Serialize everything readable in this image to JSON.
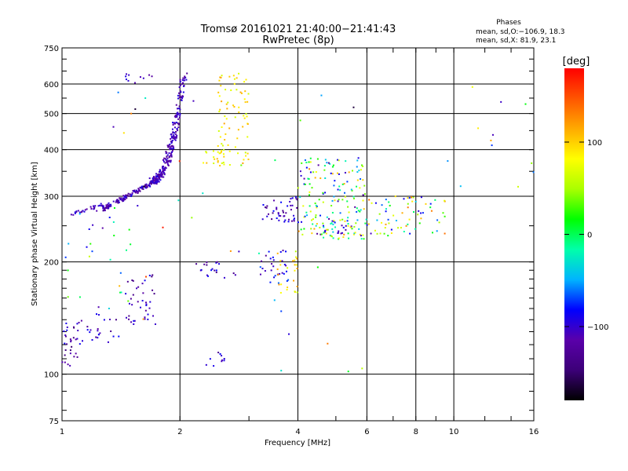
{
  "chart_data": {
    "type": "scatter",
    "title": "Tromsø 20161021 21:40:00−21:41:43",
    "subtitle": "RwPretec (8p)",
    "info_block": {
      "heading": "Phases",
      "line1": "mean, sd,O:−106.9, 18.3",
      "line2": "mean, sd,X:  81.9, 23.1"
    },
    "xlabel": "Frequency [MHz]",
    "ylabel": "Stationary phase Virtual Height [km]",
    "x_scale": "log",
    "y_scale": "log",
    "xlim": [
      1,
      16
    ],
    "ylim": [
      75,
      750
    ],
    "x_ticks": [
      1,
      2,
      4,
      6,
      8,
      10,
      16
    ],
    "x_tick_labels": [
      "1",
      "2",
      "4",
      "6",
      "8",
      "10",
      "16"
    ],
    "x_grid": [
      2,
      4,
      6,
      8,
      10
    ],
    "y_ticks": [
      75,
      100,
      200,
      300,
      400,
      500,
      600,
      750
    ],
    "y_tick_labels": [
      "75",
      "100",
      "200",
      "300",
      "400",
      "500",
      "600",
      "750"
    ],
    "y_grid": [
      100,
      200,
      300,
      400,
      500,
      600
    ],
    "grid": true,
    "colorbar": {
      "label": "[deg]",
      "range": [
        -180,
        180
      ],
      "ticks": [
        100,
        0,
        -100
      ],
      "tick_labels": [
        "100",
        "0",
        "−100"
      ],
      "colors": [
        "#000000",
        "#3c0078",
        "#5a00aa",
        "#0000ff",
        "#00b4ff",
        "#00ffaa",
        "#00ff00",
        "#aaff00",
        "#ffff00",
        "#ffaa00",
        "#ff5500",
        "#ff0000"
      ]
    },
    "clusters": [
      {
        "name": "o-trace-upper",
        "x": [
          1.7,
          2.05
        ],
        "y": [
          330,
          640
        ],
        "n": 260,
        "phase": [
          -130,
          -90
        ],
        "spread": 0.02
      },
      {
        "name": "o-trace-lower",
        "x": [
          1.25,
          1.75
        ],
        "y": [
          275,
          330
        ],
        "n": 140,
        "phase": [
          -130,
          -90
        ],
        "spread": 0.012
      },
      {
        "name": "o-trace-start",
        "x": [
          1.05,
          1.28
        ],
        "y": [
          268,
          285
        ],
        "n": 30,
        "phase": [
          -120,
          -90
        ],
        "spread": 0.01
      },
      {
        "name": "top-left",
        "x": [
          1.45,
          1.7
        ],
        "y": [
          600,
          640
        ],
        "n": 10,
        "phase": [
          -120,
          -90
        ],
        "spread": 0.02
      },
      {
        "name": "left-low-1",
        "x": [
          1.0,
          1.1
        ],
        "y": [
          105,
          140
        ],
        "n": 30,
        "phase": [
          -150,
          -80
        ],
        "spread": 0.04
      },
      {
        "name": "left-low-2",
        "x": [
          1.1,
          1.4
        ],
        "y": [
          120,
          145
        ],
        "n": 25,
        "phase": [
          -140,
          -80
        ],
        "spread": 0.04
      },
      {
        "name": "left-low-3",
        "x": [
          1.45,
          1.75
        ],
        "y": [
          135,
          185
        ],
        "n": 40,
        "phase": [
          -140,
          -80
        ],
        "spread": 0.04
      },
      {
        "name": "left-scatter",
        "x": [
          1.0,
          1.5
        ],
        "y": [
          150,
          280
        ],
        "n": 25,
        "phase": [
          -120,
          60
        ],
        "spread": 0.05
      },
      {
        "name": "x-trace-upper",
        "x": [
          2.5,
          3.0
        ],
        "y": [
          360,
          640
        ],
        "n": 70,
        "phase": [
          60,
          120
        ],
        "spread": 0.05
      },
      {
        "name": "x-trace-low",
        "x": [
          2.25,
          2.6
        ],
        "y": [
          365,
          400
        ],
        "n": 20,
        "phase": [
          60,
          110
        ],
        "spread": 0.02
      },
      {
        "name": "mid-left",
        "x": [
          2.2,
          2.8
        ],
        "y": [
          180,
          200
        ],
        "n": 20,
        "phase": [
          -150,
          -80
        ],
        "spread": 0.04
      },
      {
        "name": "mid-low",
        "x": [
          2.3,
          2.6
        ],
        "y": [
          105,
          115
        ],
        "n": 10,
        "phase": [
          -150,
          -80
        ],
        "spread": 0.02
      },
      {
        "name": "ridge-mid",
        "x": [
          3.2,
          4.0
        ],
        "y": [
          255,
          300
        ],
        "n": 45,
        "phase": [
          -140,
          -80
        ],
        "spread": 0.04
      },
      {
        "name": "ridge-low",
        "x": [
          3.2,
          3.8
        ],
        "y": [
          175,
          215
        ],
        "n": 30,
        "phase": [
          -130,
          -60
        ],
        "spread": 0.04
      },
      {
        "name": "yellow-low",
        "x": [
          3.5,
          4.0
        ],
        "y": [
          165,
          215
        ],
        "n": 25,
        "phase": [
          50,
          120
        ],
        "spread": 0.04
      },
      {
        "name": "right-cluster",
        "x": [
          4.0,
          6.0
        ],
        "y": [
          230,
          380
        ],
        "n": 160,
        "phase": [
          -130,
          130
        ],
        "spread": 0.06
      },
      {
        "name": "right-cluster-2",
        "x": [
          4.6,
          5.8
        ],
        "y": [
          230,
          260
        ],
        "n": 40,
        "phase": [
          -120,
          110
        ],
        "spread": 0.03
      },
      {
        "name": "right-tail",
        "x": [
          6.0,
          9.5
        ],
        "y": [
          235,
          300
        ],
        "n": 70,
        "phase": [
          -120,
          140
        ],
        "spread": 0.05
      },
      {
        "name": "far-right",
        "x": [
          9.5,
          16
        ],
        "y": [
          300,
          620
        ],
        "n": 12,
        "phase": [
          -120,
          120
        ],
        "spread": 0.1
      },
      {
        "name": "isolated",
        "x": [
          1.2,
          6.0
        ],
        "y": [
          95,
          600
        ],
        "n": 40,
        "phase": [
          -180,
          180
        ],
        "spread": 0.1
      }
    ]
  }
}
